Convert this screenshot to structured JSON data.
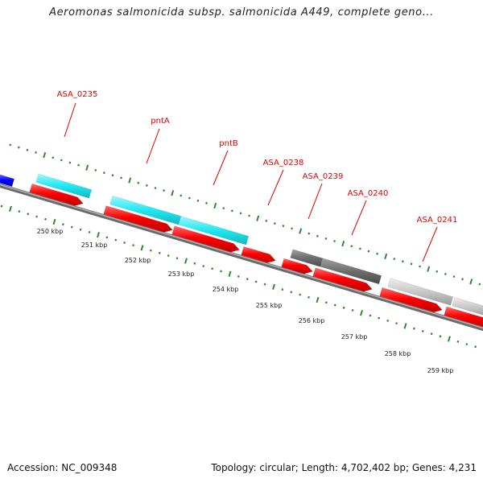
{
  "title": "Aeromonas salmonicida subsp. salmonicida A449, complete geno...",
  "accession_text": "Accession: NC_009348",
  "summary_text": "Topology: circular; Length: 4,702,402 bp; Genes: 4,231",
  "gene_labels": [
    "ASA_0235",
    "pntA",
    "pntB",
    "ASA_0238",
    "ASA_0239",
    "ASA_0240",
    "ASA_0241"
  ],
  "tick_labels": [
    "250 kbp",
    "251 kbp",
    "252 kbp",
    "253 kbp",
    "254 kbp",
    "255 kbp",
    "256 kbp",
    "257 kbp",
    "258 kbp",
    "259 kbp"
  ],
  "colors": {
    "backbone": "#8a8a8a",
    "cds_strand": "#ff0000",
    "gene_cyan": "#1fe8f0",
    "gene_dark_gray": "#6e6e6e",
    "gene_light_gray": "#c8c8c8",
    "gene_blue": "#0000ff",
    "ticks": "#2e8b2e",
    "label_red": "#e00000"
  }
}
